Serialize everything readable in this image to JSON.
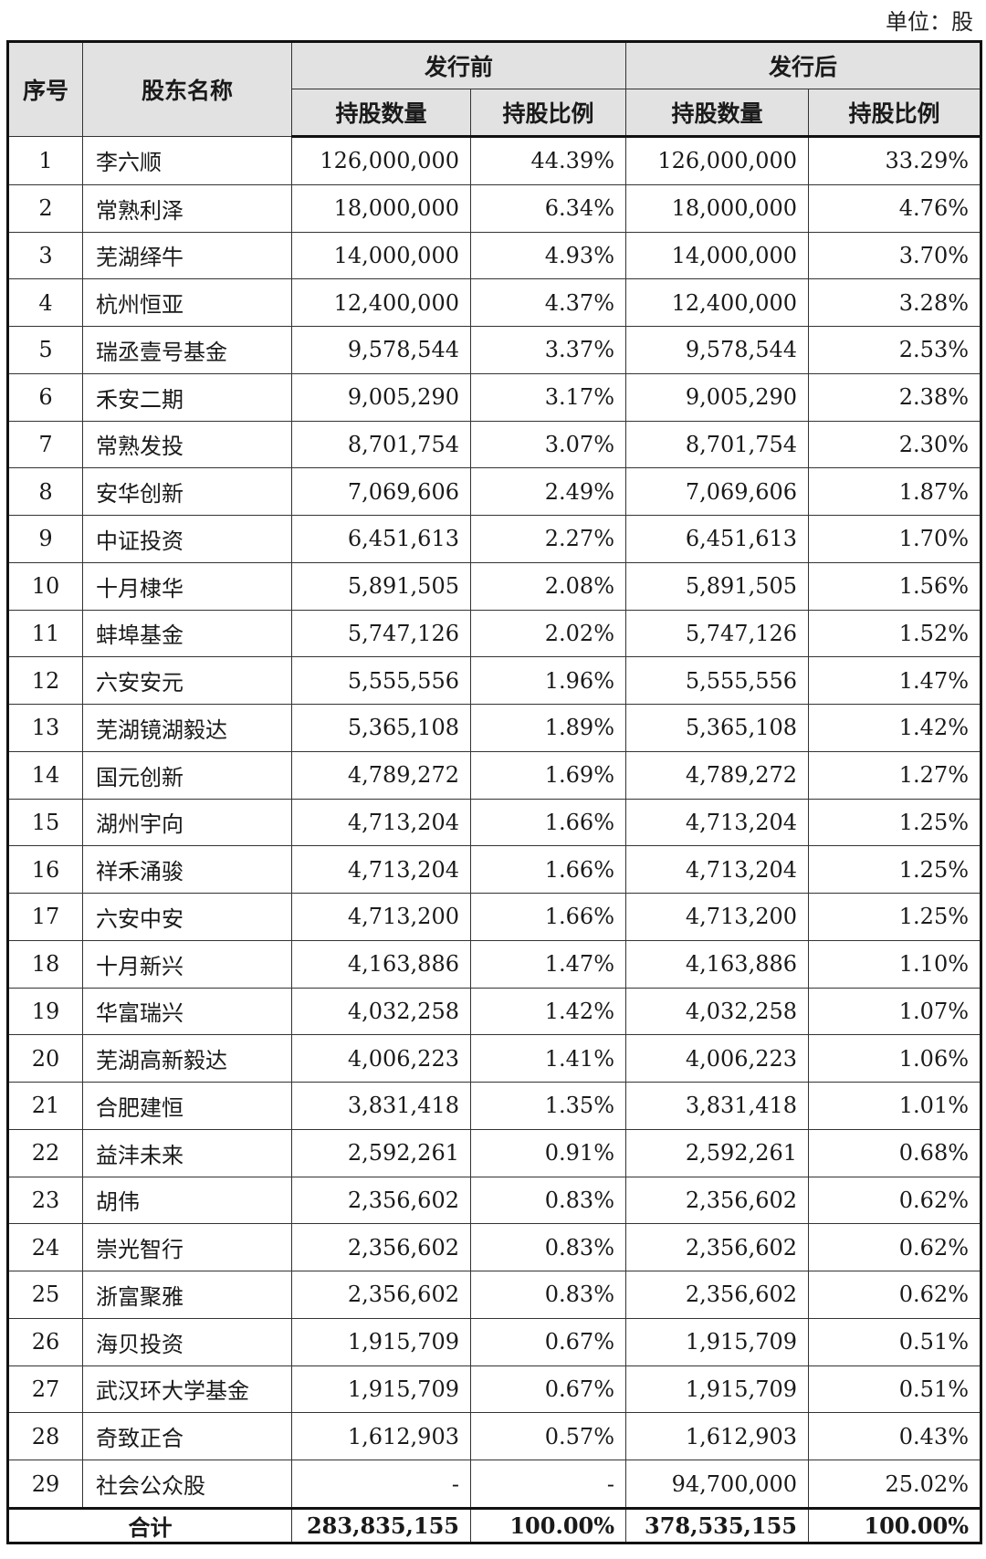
{
  "unit_label": "单位：股",
  "headers": {
    "seq": "序号",
    "name": "股东名称",
    "before": "发行前",
    "after": "发行后",
    "shares": "持股数量",
    "ratio": "持股比例"
  },
  "rows": [
    {
      "seq": "1",
      "name": "李六顺",
      "before_shares": "126,000,000",
      "before_ratio": "44.39%",
      "after_shares": "126,000,000",
      "after_ratio": "33.29%"
    },
    {
      "seq": "2",
      "name": "常熟利泽",
      "before_shares": "18,000,000",
      "before_ratio": "6.34%",
      "after_shares": "18,000,000",
      "after_ratio": "4.76%"
    },
    {
      "seq": "3",
      "name": "芜湖绎牛",
      "before_shares": "14,000,000",
      "before_ratio": "4.93%",
      "after_shares": "14,000,000",
      "after_ratio": "3.70%"
    },
    {
      "seq": "4",
      "name": "杭州恒亚",
      "before_shares": "12,400,000",
      "before_ratio": "4.37%",
      "after_shares": "12,400,000",
      "after_ratio": "3.28%"
    },
    {
      "seq": "5",
      "name": "瑞丞壹号基金",
      "before_shares": "9,578,544",
      "before_ratio": "3.37%",
      "after_shares": "9,578,544",
      "after_ratio": "2.53%"
    },
    {
      "seq": "6",
      "name": "禾安二期",
      "before_shares": "9,005,290",
      "before_ratio": "3.17%",
      "after_shares": "9,005,290",
      "after_ratio": "2.38%"
    },
    {
      "seq": "7",
      "name": "常熟发投",
      "before_shares": "8,701,754",
      "before_ratio": "3.07%",
      "after_shares": "8,701,754",
      "after_ratio": "2.30%"
    },
    {
      "seq": "8",
      "name": "安华创新",
      "before_shares": "7,069,606",
      "before_ratio": "2.49%",
      "after_shares": "7,069,606",
      "after_ratio": "1.87%"
    },
    {
      "seq": "9",
      "name": "中证投资",
      "before_shares": "6,451,613",
      "before_ratio": "2.27%",
      "after_shares": "6,451,613",
      "after_ratio": "1.70%"
    },
    {
      "seq": "10",
      "name": "十月棣华",
      "before_shares": "5,891,505",
      "before_ratio": "2.08%",
      "after_shares": "5,891,505",
      "after_ratio": "1.56%"
    },
    {
      "seq": "11",
      "name": "蚌埠基金",
      "before_shares": "5,747,126",
      "before_ratio": "2.02%",
      "after_shares": "5,747,126",
      "after_ratio": "1.52%"
    },
    {
      "seq": "12",
      "name": "六安安元",
      "before_shares": "5,555,556",
      "before_ratio": "1.96%",
      "after_shares": "5,555,556",
      "after_ratio": "1.47%"
    },
    {
      "seq": "13",
      "name": "芜湖镜湖毅达",
      "before_shares": "5,365,108",
      "before_ratio": "1.89%",
      "after_shares": "5,365,108",
      "after_ratio": "1.42%"
    },
    {
      "seq": "14",
      "name": "国元创新",
      "before_shares": "4,789,272",
      "before_ratio": "1.69%",
      "after_shares": "4,789,272",
      "after_ratio": "1.27%"
    },
    {
      "seq": "15",
      "name": "湖州宇向",
      "before_shares": "4,713,204",
      "before_ratio": "1.66%",
      "after_shares": "4,713,204",
      "after_ratio": "1.25%"
    },
    {
      "seq": "16",
      "name": "祥禾涌骏",
      "before_shares": "4,713,204",
      "before_ratio": "1.66%",
      "after_shares": "4,713,204",
      "after_ratio": "1.25%"
    },
    {
      "seq": "17",
      "name": "六安中安",
      "before_shares": "4,713,200",
      "before_ratio": "1.66%",
      "after_shares": "4,713,200",
      "after_ratio": "1.25%"
    },
    {
      "seq": "18",
      "name": "十月新兴",
      "before_shares": "4,163,886",
      "before_ratio": "1.47%",
      "after_shares": "4,163,886",
      "after_ratio": "1.10%"
    },
    {
      "seq": "19",
      "name": "华富瑞兴",
      "before_shares": "4,032,258",
      "before_ratio": "1.42%",
      "after_shares": "4,032,258",
      "after_ratio": "1.07%"
    },
    {
      "seq": "20",
      "name": "芜湖高新毅达",
      "before_shares": "4,006,223",
      "before_ratio": "1.41%",
      "after_shares": "4,006,223",
      "after_ratio": "1.06%"
    },
    {
      "seq": "21",
      "name": "合肥建恒",
      "before_shares": "3,831,418",
      "before_ratio": "1.35%",
      "after_shares": "3,831,418",
      "after_ratio": "1.01%"
    },
    {
      "seq": "22",
      "name": "益沣未来",
      "before_shares": "2,592,261",
      "before_ratio": "0.91%",
      "after_shares": "2,592,261",
      "after_ratio": "0.68%"
    },
    {
      "seq": "23",
      "name": "胡伟",
      "before_shares": "2,356,602",
      "before_ratio": "0.83%",
      "after_shares": "2,356,602",
      "after_ratio": "0.62%"
    },
    {
      "seq": "24",
      "name": "崇光智行",
      "before_shares": "2,356,602",
      "before_ratio": "0.83%",
      "after_shares": "2,356,602",
      "after_ratio": "0.62%"
    },
    {
      "seq": "25",
      "name": "浙富聚雅",
      "before_shares": "2,356,602",
      "before_ratio": "0.83%",
      "after_shares": "2,356,602",
      "after_ratio": "0.62%"
    },
    {
      "seq": "26",
      "name": "海贝投资",
      "before_shares": "1,915,709",
      "before_ratio": "0.67%",
      "after_shares": "1,915,709",
      "after_ratio": "0.51%"
    },
    {
      "seq": "27",
      "name": "武汉环大学基金",
      "before_shares": "1,915,709",
      "before_ratio": "0.67%",
      "after_shares": "1,915,709",
      "after_ratio": "0.51%"
    },
    {
      "seq": "28",
      "name": "奇致正合",
      "before_shares": "1,612,903",
      "before_ratio": "0.57%",
      "after_shares": "1,612,903",
      "after_ratio": "0.43%"
    },
    {
      "seq": "29",
      "name": "社会公众股",
      "before_shares": "-",
      "before_ratio": "-",
      "after_shares": "94,700,000",
      "after_ratio": "25.02%"
    }
  ],
  "total": {
    "label": "合计",
    "before_shares": "283,835,155",
    "before_ratio": "100.00%",
    "after_shares": "378,535,155",
    "after_ratio": "100.00%"
  }
}
